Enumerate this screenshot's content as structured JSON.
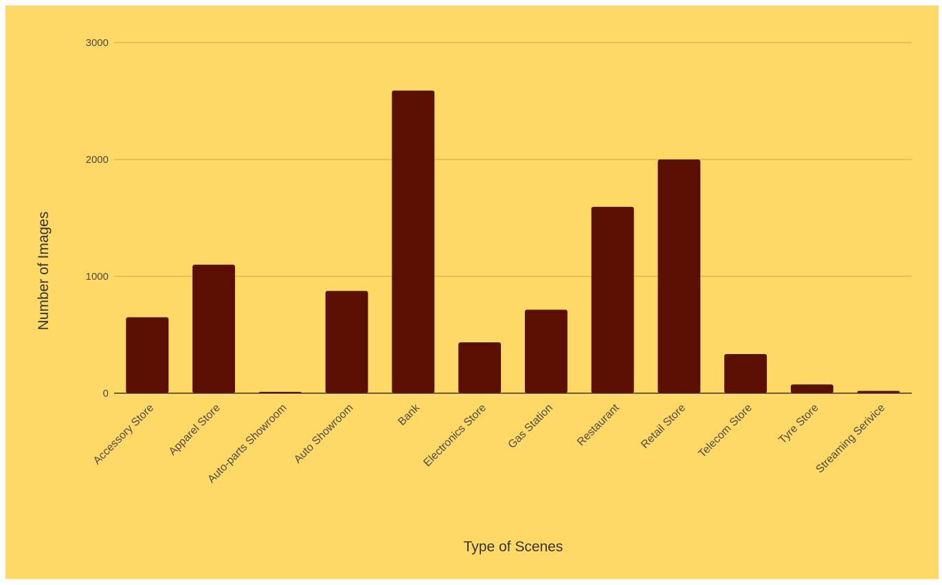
{
  "chart_data": {
    "type": "bar",
    "title": "",
    "xlabel": "Type of Scenes",
    "ylabel": "Number of Images",
    "ylim": [
      0,
      3000
    ],
    "yticks": [
      "0",
      "1000",
      "2000",
      "3000"
    ],
    "grid": true,
    "legend": "none",
    "categories": [
      "Accessory Store",
      "Apparel Store",
      "Auto-parts Showroom",
      "Auto Showroom",
      "Bank",
      "Electronics Store",
      "Gas Station",
      "Restaurant",
      "Retail Store",
      "Telecom Store",
      "Tyre Store",
      "Streaming Serivice"
    ],
    "series": [
      {
        "values": [
          650,
          1100,
          12,
          875,
          2590,
          435,
          715,
          1595,
          2000,
          335,
          75,
          20
        ]
      }
    ]
  },
  "colors": {
    "background": "#ffd966",
    "bar": "#5b0f00",
    "gridline": "#c9a94e",
    "baseline": "#333333",
    "text": "#333333",
    "tick_text": "#4a4a4a"
  }
}
